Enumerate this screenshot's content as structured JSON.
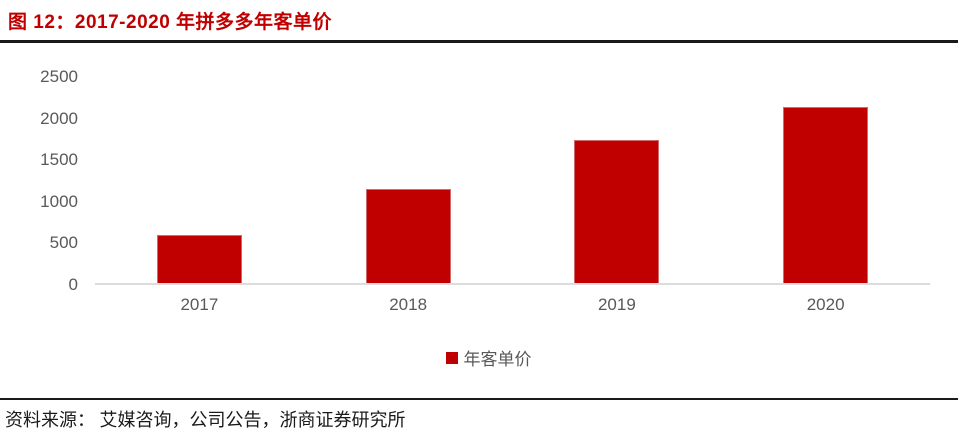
{
  "title": "图  12：2017-2020 年拼多多年客单价",
  "source": "资料来源：  艾媒咨询，公司公告，浙商证券研究所",
  "colors": {
    "bar": "#c00000",
    "title": "#c00000",
    "axis_text": "#595959",
    "axis_line": "#dcdcdc",
    "rule": "#1a1a1a"
  },
  "chart_data": {
    "type": "bar",
    "title": "2017-2020 年拼多多年客单价",
    "categories": [
      "2017",
      "2018",
      "2019",
      "2020"
    ],
    "series": [
      {
        "name": "年客单价",
        "values": [
          577,
          1127,
          1720,
          2115
        ]
      }
    ],
    "xlabel": "",
    "ylabel": "",
    "ylim": [
      0,
      2500
    ],
    "yticks": [
      0,
      500,
      1000,
      1500,
      2000,
      2500
    ],
    "grid": false,
    "legend": "年客单价",
    "legend_position": "bottom-center",
    "bar_color": "#c00000"
  }
}
